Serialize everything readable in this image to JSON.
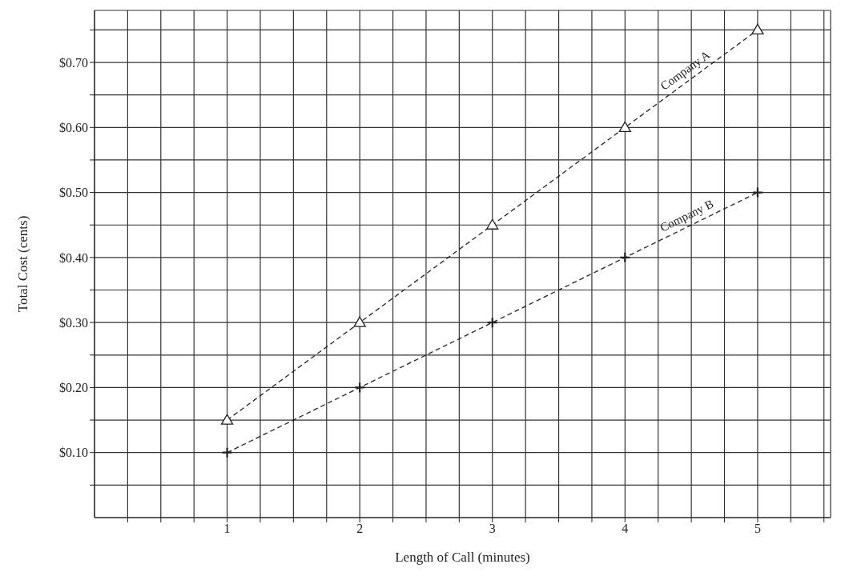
{
  "chart_data": {
    "type": "line",
    "xlabel": "Length of Call (minutes)",
    "ylabel": "Total Cost (cents)",
    "xlim": [
      0,
      5.55
    ],
    "ylim": [
      0,
      0.78
    ],
    "xticks": [
      {
        "value": 0.25,
        "label": null
      },
      {
        "value": 0.5,
        "label": null
      },
      {
        "value": 0.75,
        "label": null
      },
      1,
      {
        "value": 1.25,
        "label": null
      },
      {
        "value": 1.5,
        "label": null
      },
      {
        "value": 1.75,
        "label": null
      },
      2,
      {
        "value": 2.25,
        "label": null
      },
      {
        "value": 2.5,
        "label": null
      },
      {
        "value": 2.75,
        "label": null
      },
      3,
      {
        "value": 3.25,
        "label": null
      },
      {
        "value": 3.5,
        "label": null
      },
      {
        "value": 3.75,
        "label": null
      },
      4,
      {
        "value": 4.25,
        "label": null
      },
      {
        "value": 4.5,
        "label": null
      },
      {
        "value": 4.75,
        "label": null
      },
      5,
      {
        "value": 5.25,
        "label": null
      },
      {
        "value": 5.5,
        "label": null
      }
    ],
    "yticks": [
      {
        "value": 0.05,
        "label": null
      },
      {
        "value": 0.1,
        "label": "$0.10"
      },
      {
        "value": 0.15,
        "label": null
      },
      {
        "value": 0.2,
        "label": "$0.20"
      },
      {
        "value": 0.25,
        "label": null
      },
      {
        "value": 0.3,
        "label": "$0.30"
      },
      {
        "value": 0.35,
        "label": null
      },
      {
        "value": 0.4,
        "label": "$0.40"
      },
      {
        "value": 0.45,
        "label": null
      },
      {
        "value": 0.5,
        "label": "$0.50"
      },
      {
        "value": 0.55,
        "label": null
      },
      {
        "value": 0.6,
        "label": "$0.60"
      },
      {
        "value": 0.65,
        "label": null
      },
      {
        "value": 0.7,
        "label": "$0.70"
      },
      {
        "value": 0.75,
        "label": null
      }
    ],
    "grid": true,
    "legend": false,
    "line_style": "dashed",
    "x": [
      1,
      2,
      3,
      4,
      5
    ],
    "series": [
      {
        "name": "Company A",
        "color": "#222222",
        "marker": "triangle",
        "values": [
          0.15,
          0.3,
          0.45,
          0.6,
          0.75
        ]
      },
      {
        "name": "Company B",
        "color": "#222222",
        "marker": "cross",
        "values": [
          0.1,
          0.2,
          0.3,
          0.4,
          0.5
        ]
      }
    ]
  }
}
